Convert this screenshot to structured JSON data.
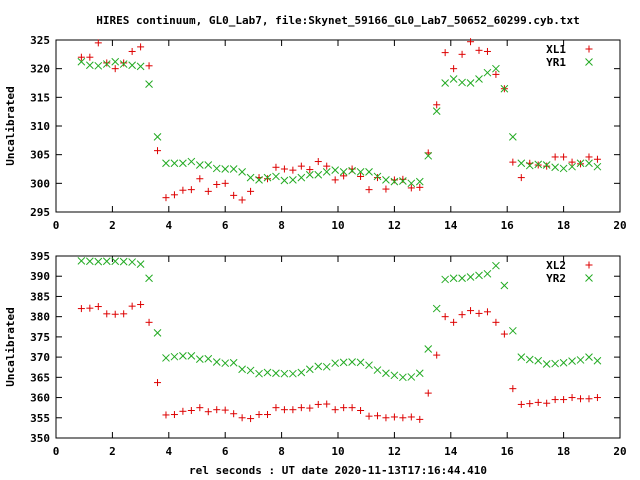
{
  "title": "HIRES continuum, GL0_Lab7, file:Skynet_59166_GL0_Lab7_50652_60299.cyb.txt",
  "xlabel": "rel seconds : UT date 2020-11-13T17:16:44.410",
  "colors": {
    "plus": "#dd0000",
    "cross": "#22aa22",
    "axis": "#000000"
  },
  "chart_data": [
    {
      "type": "scatter",
      "title": "HIRES continuum, GL0_Lab7, file:Skynet_59166_GL0_Lab7_50652_60299.cyb.txt",
      "xlabel": "",
      "ylabel": "Uncalibrated",
      "xlim": [
        0,
        20
      ],
      "ylim": [
        295,
        325
      ],
      "xticks": [
        0,
        2,
        4,
        6,
        8,
        10,
        12,
        14,
        16,
        18,
        20
      ],
      "yticks": [
        295,
        300,
        305,
        310,
        315,
        320,
        325
      ],
      "grid": false,
      "legend": "top-right",
      "series": [
        {
          "name": "XL1",
          "marker": "plus",
          "color": "#dd0000",
          "x": [
            0.9,
            1.2,
            1.5,
            1.8,
            2.1,
            2.4,
            2.7,
            3.0,
            3.3,
            3.6,
            3.9,
            4.2,
            4.5,
            4.8,
            5.1,
            5.4,
            5.7,
            6.0,
            6.3,
            6.6,
            6.9,
            7.2,
            7.5,
            7.8,
            8.1,
            8.4,
            8.7,
            9.0,
            9.3,
            9.6,
            9.9,
            10.2,
            10.5,
            10.8,
            11.1,
            11.4,
            11.7,
            12.0,
            12.3,
            12.6,
            12.9,
            13.2,
            13.5,
            13.8,
            14.1,
            14.4,
            14.7,
            15.0,
            15.3,
            15.6,
            15.9,
            16.2,
            16.5,
            16.8,
            17.1,
            17.4,
            17.7,
            18.0,
            18.3,
            18.6,
            18.9,
            19.2
          ],
          "y": [
            322.0,
            322.0,
            324.5,
            321.0,
            320.0,
            321.0,
            323.0,
            323.8,
            320.5,
            305.7,
            297.5,
            298.0,
            298.8,
            298.9,
            300.8,
            298.6,
            299.8,
            300.0,
            297.9,
            297.1,
            298.6,
            301.0,
            300.8,
            302.8,
            302.5,
            302.3,
            303.0,
            302.4,
            303.8,
            303.0,
            300.6,
            301.3,
            302.5,
            301.2,
            298.9,
            301.0,
            299.0,
            300.6,
            300.7,
            299.2,
            299.3,
            305.3,
            313.7,
            322.8,
            320.0,
            322.5,
            324.7,
            323.2,
            323.0,
            319.0,
            316.5,
            303.7,
            301.0,
            303.5,
            303.2,
            303.0,
            304.6,
            304.6,
            303.7,
            303.4,
            304.6,
            304.2
          ]
        },
        {
          "name": "YR1",
          "marker": "cross",
          "color": "#22aa22",
          "x": [
            0.9,
            1.2,
            1.5,
            1.8,
            2.1,
            2.4,
            2.7,
            3.0,
            3.3,
            3.6,
            3.9,
            4.2,
            4.5,
            4.8,
            5.1,
            5.4,
            5.7,
            6.0,
            6.3,
            6.6,
            6.9,
            7.2,
            7.5,
            7.8,
            8.1,
            8.4,
            8.7,
            9.0,
            9.3,
            9.6,
            9.9,
            10.2,
            10.5,
            10.8,
            11.1,
            11.4,
            11.7,
            12.0,
            12.3,
            12.6,
            12.9,
            13.2,
            13.5,
            13.8,
            14.1,
            14.4,
            14.7,
            15.0,
            15.3,
            15.6,
            15.9,
            16.2,
            16.5,
            16.8,
            17.1,
            17.4,
            17.7,
            18.0,
            18.3,
            18.6,
            18.9,
            19.2
          ],
          "y": [
            321.2,
            320.6,
            320.5,
            320.8,
            321.2,
            320.8,
            320.6,
            320.4,
            317.3,
            308.1,
            303.5,
            303.5,
            303.5,
            303.8,
            303.2,
            303.2,
            302.6,
            302.5,
            302.5,
            302.0,
            301.0,
            300.6,
            301.0,
            301.2,
            300.5,
            300.6,
            301.0,
            301.5,
            301.5,
            302.0,
            302.3,
            302.0,
            302.2,
            302.0,
            302.0,
            301.2,
            300.6,
            300.3,
            300.4,
            300.0,
            300.3,
            304.8,
            312.6,
            317.5,
            318.2,
            317.6,
            317.5,
            318.2,
            319.3,
            320.0,
            316.5,
            308.1,
            303.5,
            303.1,
            303.3,
            303.2,
            302.8,
            302.6,
            302.9,
            303.5,
            303.5,
            302.9
          ]
        }
      ]
    },
    {
      "type": "scatter",
      "title": "",
      "xlabel": "rel seconds : UT date 2020-11-13T17:16:44.410",
      "ylabel": "Uncalibrated",
      "xlim": [
        0,
        20
      ],
      "ylim": [
        350,
        395
      ],
      "xticks": [
        0,
        2,
        4,
        6,
        8,
        10,
        12,
        14,
        16,
        18,
        20
      ],
      "yticks": [
        350,
        355,
        360,
        365,
        370,
        375,
        380,
        385,
        390,
        395
      ],
      "grid": false,
      "legend": "top-right",
      "series": [
        {
          "name": "XL2",
          "marker": "plus",
          "color": "#dd0000",
          "x": [
            0.9,
            1.2,
            1.5,
            1.8,
            2.1,
            2.4,
            2.7,
            3.0,
            3.3,
            3.6,
            3.9,
            4.2,
            4.5,
            4.8,
            5.1,
            5.4,
            5.7,
            6.0,
            6.3,
            6.6,
            6.9,
            7.2,
            7.5,
            7.8,
            8.1,
            8.4,
            8.7,
            9.0,
            9.3,
            9.6,
            9.9,
            10.2,
            10.5,
            10.8,
            11.1,
            11.4,
            11.7,
            12.0,
            12.3,
            12.6,
            12.9,
            13.2,
            13.5,
            13.8,
            14.1,
            14.4,
            14.7,
            15.0,
            15.3,
            15.6,
            15.9,
            16.2,
            16.5,
            16.8,
            17.1,
            17.4,
            17.7,
            18.0,
            18.3,
            18.6,
            18.9,
            19.2
          ],
          "y": [
            382.0,
            382.1,
            382.5,
            380.7,
            380.6,
            380.7,
            382.6,
            383.0,
            378.6,
            363.7,
            355.7,
            355.8,
            356.6,
            356.8,
            357.5,
            356.5,
            357.0,
            356.9,
            356.0,
            355.0,
            354.8,
            355.8,
            355.8,
            357.5,
            357.0,
            357.0,
            357.5,
            357.4,
            358.3,
            358.4,
            357.0,
            357.5,
            357.5,
            356.8,
            355.4,
            355.5,
            355.0,
            355.2,
            355.0,
            355.2,
            354.6,
            361.1,
            370.5,
            380.0,
            378.6,
            380.5,
            381.5,
            380.8,
            381.2,
            378.6,
            375.7,
            362.2,
            358.3,
            358.5,
            358.8,
            358.6,
            359.5,
            359.5,
            360.0,
            359.7,
            359.7,
            360.0
          ]
        },
        {
          "name": "YR2",
          "marker": "cross",
          "color": "#22aa22",
          "x": [
            0.9,
            1.2,
            1.5,
            1.8,
            2.1,
            2.4,
            2.7,
            3.0,
            3.3,
            3.6,
            3.9,
            4.2,
            4.5,
            4.8,
            5.1,
            5.4,
            5.7,
            6.0,
            6.3,
            6.6,
            6.9,
            7.2,
            7.5,
            7.8,
            8.1,
            8.4,
            8.7,
            9.0,
            9.3,
            9.6,
            9.9,
            10.2,
            10.5,
            10.8,
            11.1,
            11.4,
            11.7,
            12.0,
            12.3,
            12.6,
            12.9,
            13.2,
            13.5,
            13.8,
            14.1,
            14.4,
            14.7,
            15.0,
            15.3,
            15.6,
            15.9,
            16.2,
            16.5,
            16.8,
            17.1,
            17.4,
            17.7,
            18.0,
            18.3,
            18.6,
            18.9,
            19.2
          ],
          "y": [
            393.8,
            393.7,
            393.6,
            393.7,
            393.7,
            393.6,
            393.5,
            393.0,
            389.5,
            376.0,
            369.8,
            370.1,
            370.3,
            370.3,
            369.5,
            369.6,
            368.8,
            368.5,
            368.6,
            367.0,
            366.7,
            365.9,
            366.2,
            366.0,
            365.9,
            365.9,
            366.2,
            367.0,
            367.7,
            367.6,
            368.5,
            368.7,
            368.8,
            368.7,
            368.0,
            366.8,
            366.0,
            365.5,
            365.0,
            365.1,
            366.0,
            372.0,
            382.0,
            389.2,
            389.5,
            389.5,
            389.8,
            390.2,
            390.6,
            392.6,
            387.7,
            376.5,
            370.0,
            369.4,
            369.1,
            368.3,
            368.4,
            368.6,
            369.0,
            369.3,
            370.0,
            369.1
          ]
        }
      ]
    }
  ]
}
